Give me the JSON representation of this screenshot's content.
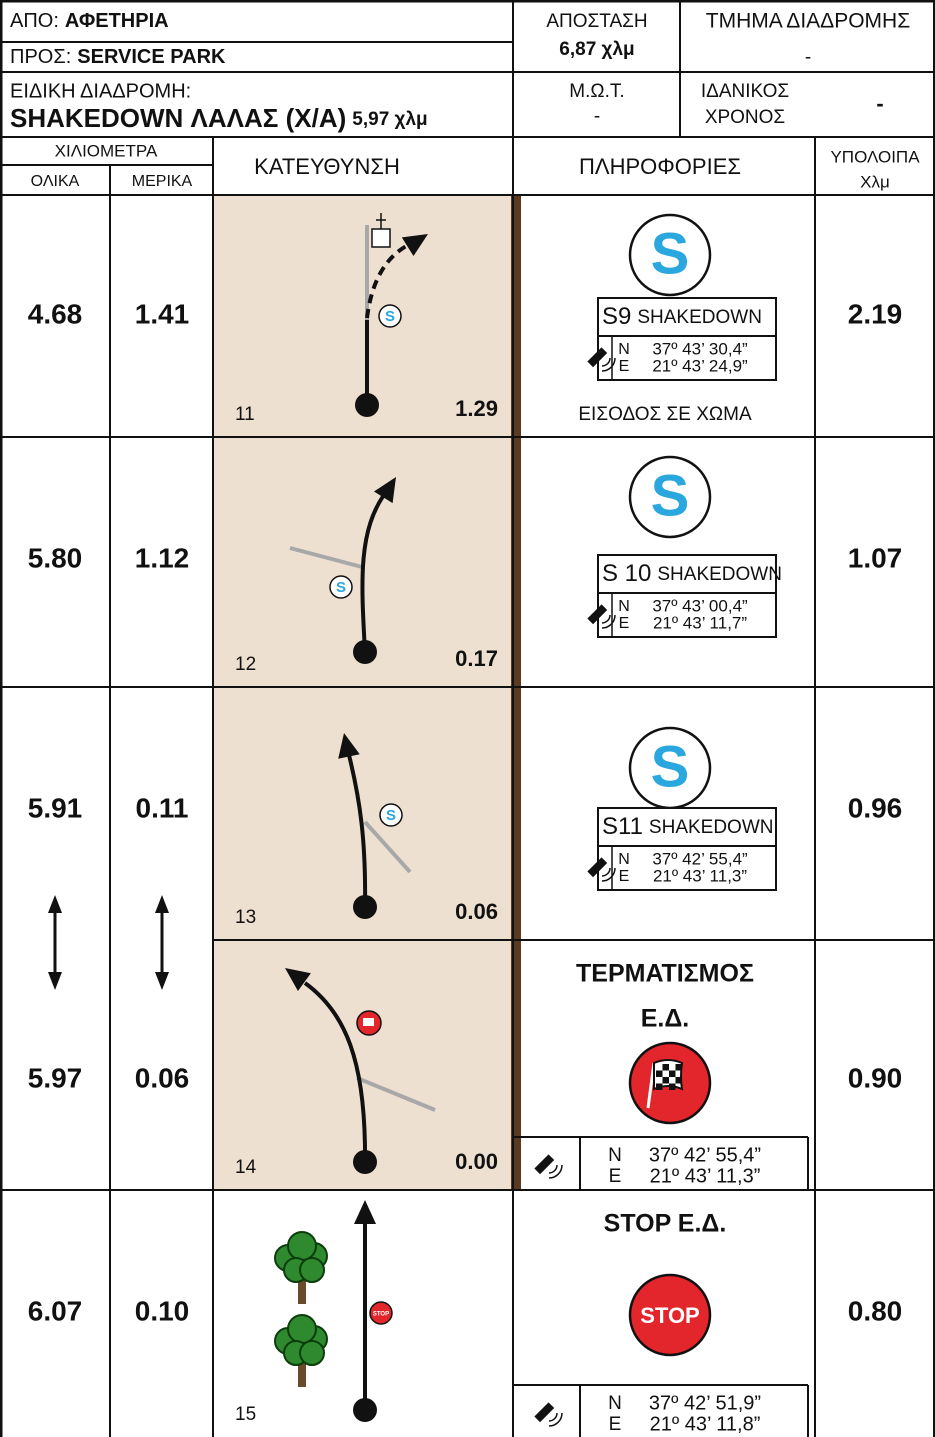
{
  "header": {
    "from_label": "ΑΠΟ:",
    "from": "ΑΦΕΤΗΡΙΑ",
    "to_label": "ΠΡΟΣ:",
    "to": "SERVICE PARK",
    "distance_label": "ΑΠΟΣΤΑΣΗ",
    "distance": "6,87 χλμ",
    "section_label": "ΤΜΗΜΑ ΔΙΑΔΡΟΜΗΣ",
    "section": "-",
    "special_label": "ΕΙΔΙΚΗ ΔΙΑΔΡΟΜΗ:",
    "special_name": "SHAKEDOWN ΛΑΛΑΣ (Χ/Α)",
    "special_distance": "5,97 χλμ",
    "mot_label": "Μ.Ω.Τ.",
    "mot": "-",
    "ideal_label": [
      "ΙΔΑΝΙΚΟΣ",
      "ΧΡΟΝΟΣ"
    ],
    "ideal": "-"
  },
  "columns": {
    "km": "ΧΙΛΙΟΜΕΤΡΑ",
    "total": "ΟΛΙΚΑ",
    "partial": "ΜΕΡΙΚΑ",
    "direction": "ΚΑΤΕΥΘΥΝΣΗ",
    "info": "ΠΛΗΡΟΦΟΡΙΕΣ",
    "remaining": [
      "ΥΠΟΛΟΙΠΑ",
      "Χλμ"
    ]
  },
  "rows": [
    {
      "total": "4.68",
      "partial": "1.41",
      "number": "11",
      "distance": "1.29",
      "remaining": "2.19",
      "info": {
        "icon": "S",
        "code": "S9",
        "label": "SHAKEDOWN",
        "lat_dir": "N",
        "lat": "37º 43’ 30,4”",
        "lon_dir": "E",
        "lon": "21º 43’ 24,9”",
        "note": "ΕΙΣΟΔΟΣ ΣΕ ΧΩΜΑ"
      }
    },
    {
      "total": "5.80",
      "partial": "1.12",
      "number": "12",
      "distance": "0.17",
      "remaining": "1.07",
      "info": {
        "icon": "S",
        "code": "S 10",
        "label": "SHAKEDOWN",
        "lat_dir": "N",
        "lat": "37º 43’ 00,4”",
        "lon_dir": "E",
        "lon": "21º 43’ 11,7”"
      }
    },
    {
      "total": "5.91",
      "partial": "0.11",
      "number": "13",
      "distance": "0.06",
      "remaining": "0.96",
      "info": {
        "icon": "S",
        "code": "S11",
        "label": "SHAKEDOWN",
        "lat_dir": "N",
        "lat": "37º 42’ 55,4”",
        "lon_dir": "E",
        "lon": "21º 43’ 11,3”"
      }
    },
    {
      "total": "5.97",
      "partial": "0.06",
      "number": "14",
      "distance": "0.00",
      "remaining": "0.90",
      "info": {
        "title": [
          "ΤΕΡΜΑΤΙΣΜΟΣ",
          "Ε.Δ."
        ],
        "lat_dir": "N",
        "lat": "37º 42’ 55,4”",
        "lon_dir": "E",
        "lon": "21º 43’ 11,3”"
      }
    },
    {
      "total": "6.07",
      "partial": "0.10",
      "number": "15",
      "remaining": "0.80",
      "info": {
        "title": [
          "STOP Ε.Δ."
        ],
        "sign": "STOP",
        "lat_dir": "N",
        "lat": "37º 42’ 51,9”",
        "lon_dir": "E",
        "lon": "21º 43’ 11,8”"
      }
    }
  ]
}
